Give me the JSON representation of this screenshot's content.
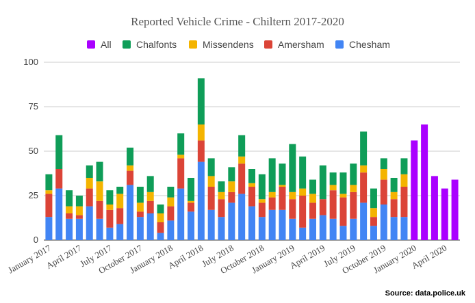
{
  "chart_data": {
    "type": "stacked-bar",
    "title": "Reported Vehicle Crime - Chiltern 2017-2020",
    "source": "Source:  data.police.uk",
    "categories": [
      "January 2017",
      null,
      null,
      "April 2017",
      null,
      null,
      "July 2017",
      null,
      null,
      "October 2017",
      null,
      null,
      "January 2018",
      null,
      null,
      "April 2018",
      null,
      null,
      "July 2018",
      null,
      null,
      "October 2018",
      null,
      null,
      "January 2019",
      null,
      null,
      "April 2019",
      null,
      null,
      "July 2019",
      null,
      null,
      "October 2019",
      null,
      null,
      "January 2020",
      null,
      null,
      "April 2020",
      null
    ],
    "series": [
      {
        "name": "All",
        "color": "#aa00ff",
        "values": [
          null,
          null,
          null,
          null,
          null,
          null,
          null,
          null,
          null,
          null,
          null,
          null,
          null,
          null,
          null,
          null,
          null,
          null,
          null,
          null,
          null,
          null,
          null,
          null,
          null,
          null,
          null,
          null,
          null,
          null,
          null,
          null,
          null,
          null,
          null,
          null,
          56,
          65,
          36,
          29,
          34
        ]
      },
      {
        "name": "Chalfonts",
        "color": "#0f9d58",
        "values": [
          9,
          19,
          9,
          6,
          7,
          11,
          8,
          4,
          10,
          9,
          9,
          5,
          6,
          12,
          13,
          26,
          10,
          6,
          8,
          12,
          8,
          14,
          19,
          12,
          27,
          18,
          8,
          19,
          7,
          12,
          12,
          19,
          11,
          6,
          8,
          9,
          null,
          null,
          null,
          null,
          null
        ]
      },
      {
        "name": "Missendens",
        "color": "#f4b400",
        "values": [
          2,
          0,
          4,
          5,
          6,
          11,
          3,
          8,
          3,
          5,
          5,
          5,
          5,
          2,
          1,
          9,
          6,
          4,
          6,
          4,
          2,
          2,
          3,
          1,
          4,
          4,
          5,
          0,
          3,
          2,
          4,
          4,
          5,
          6,
          4,
          7,
          null,
          null,
          null,
          null,
          null
        ]
      },
      {
        "name": "Amersham",
        "color": "#db4437",
        "values": [
          13,
          11,
          3,
          2,
          10,
          10,
          10,
          9,
          8,
          3,
          7,
          6,
          8,
          17,
          5,
          12,
          13,
          10,
          6,
          17,
          11,
          8,
          7,
          13,
          11,
          18,
          9,
          9,
          16,
          16,
          15,
          17,
          5,
          14,
          10,
          17,
          null,
          null,
          null,
          null,
          null
        ]
      },
      {
        "name": "Chesham",
        "color": "#4285f4",
        "values": [
          13,
          29,
          12,
          12,
          19,
          12,
          7,
          9,
          31,
          13,
          15,
          4,
          11,
          29,
          16,
          44,
          17,
          13,
          21,
          26,
          19,
          13,
          17,
          17,
          12,
          7,
          12,
          14,
          12,
          8,
          12,
          21,
          8,
          20,
          13,
          13,
          null,
          null,
          null,
          null,
          null
        ]
      }
    ],
    "ylim": [
      0,
      100
    ],
    "yticks": [
      0,
      25,
      50,
      75,
      100
    ],
    "grid": true
  }
}
